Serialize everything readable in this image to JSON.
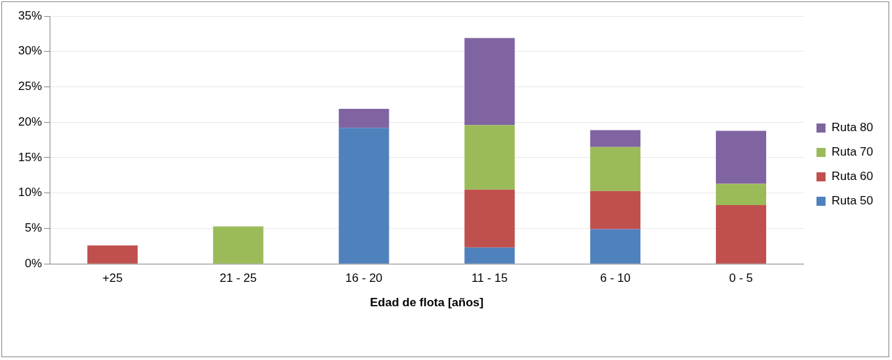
{
  "chart_data": {
    "type": "bar",
    "xlabel": "Edad de flota [años]",
    "stacked": true,
    "legend": "right",
    "grid": "y",
    "categories": [
      "+25",
      "21 - 25",
      "16 - 20",
      "11 - 15",
      "6 - 10",
      "0 - 5"
    ],
    "ylim": [
      0,
      35
    ],
    "yticks": [
      {
        "value": 0,
        "label": "0%"
      },
      {
        "value": 5,
        "label": "5%"
      },
      {
        "value": 10,
        "label": "10%"
      },
      {
        "value": 15,
        "label": "15%"
      },
      {
        "value": 20,
        "label": "20%"
      },
      {
        "value": 25,
        "label": "25%"
      },
      {
        "value": 30,
        "label": "30%"
      },
      {
        "value": 35,
        "label": "35%"
      }
    ],
    "series": [
      {
        "name": "Ruta 50",
        "color": "#4f81bd",
        "values": [
          null,
          null,
          19.2,
          2.3,
          4.9,
          null
        ]
      },
      {
        "name": "Ruta 60",
        "color": "#c0504d",
        "values": [
          2.6,
          null,
          null,
          8.2,
          5.4,
          8.3
        ]
      },
      {
        "name": "Ruta 70",
        "color": "#9bbb59",
        "values": [
          null,
          5.3,
          null,
          9.1,
          6.2,
          3.0
        ]
      },
      {
        "name": "Ruta 80",
        "color": "#8064a2",
        "values": [
          null,
          null,
          2.7,
          12.3,
          2.4,
          7.5
        ]
      }
    ]
  }
}
